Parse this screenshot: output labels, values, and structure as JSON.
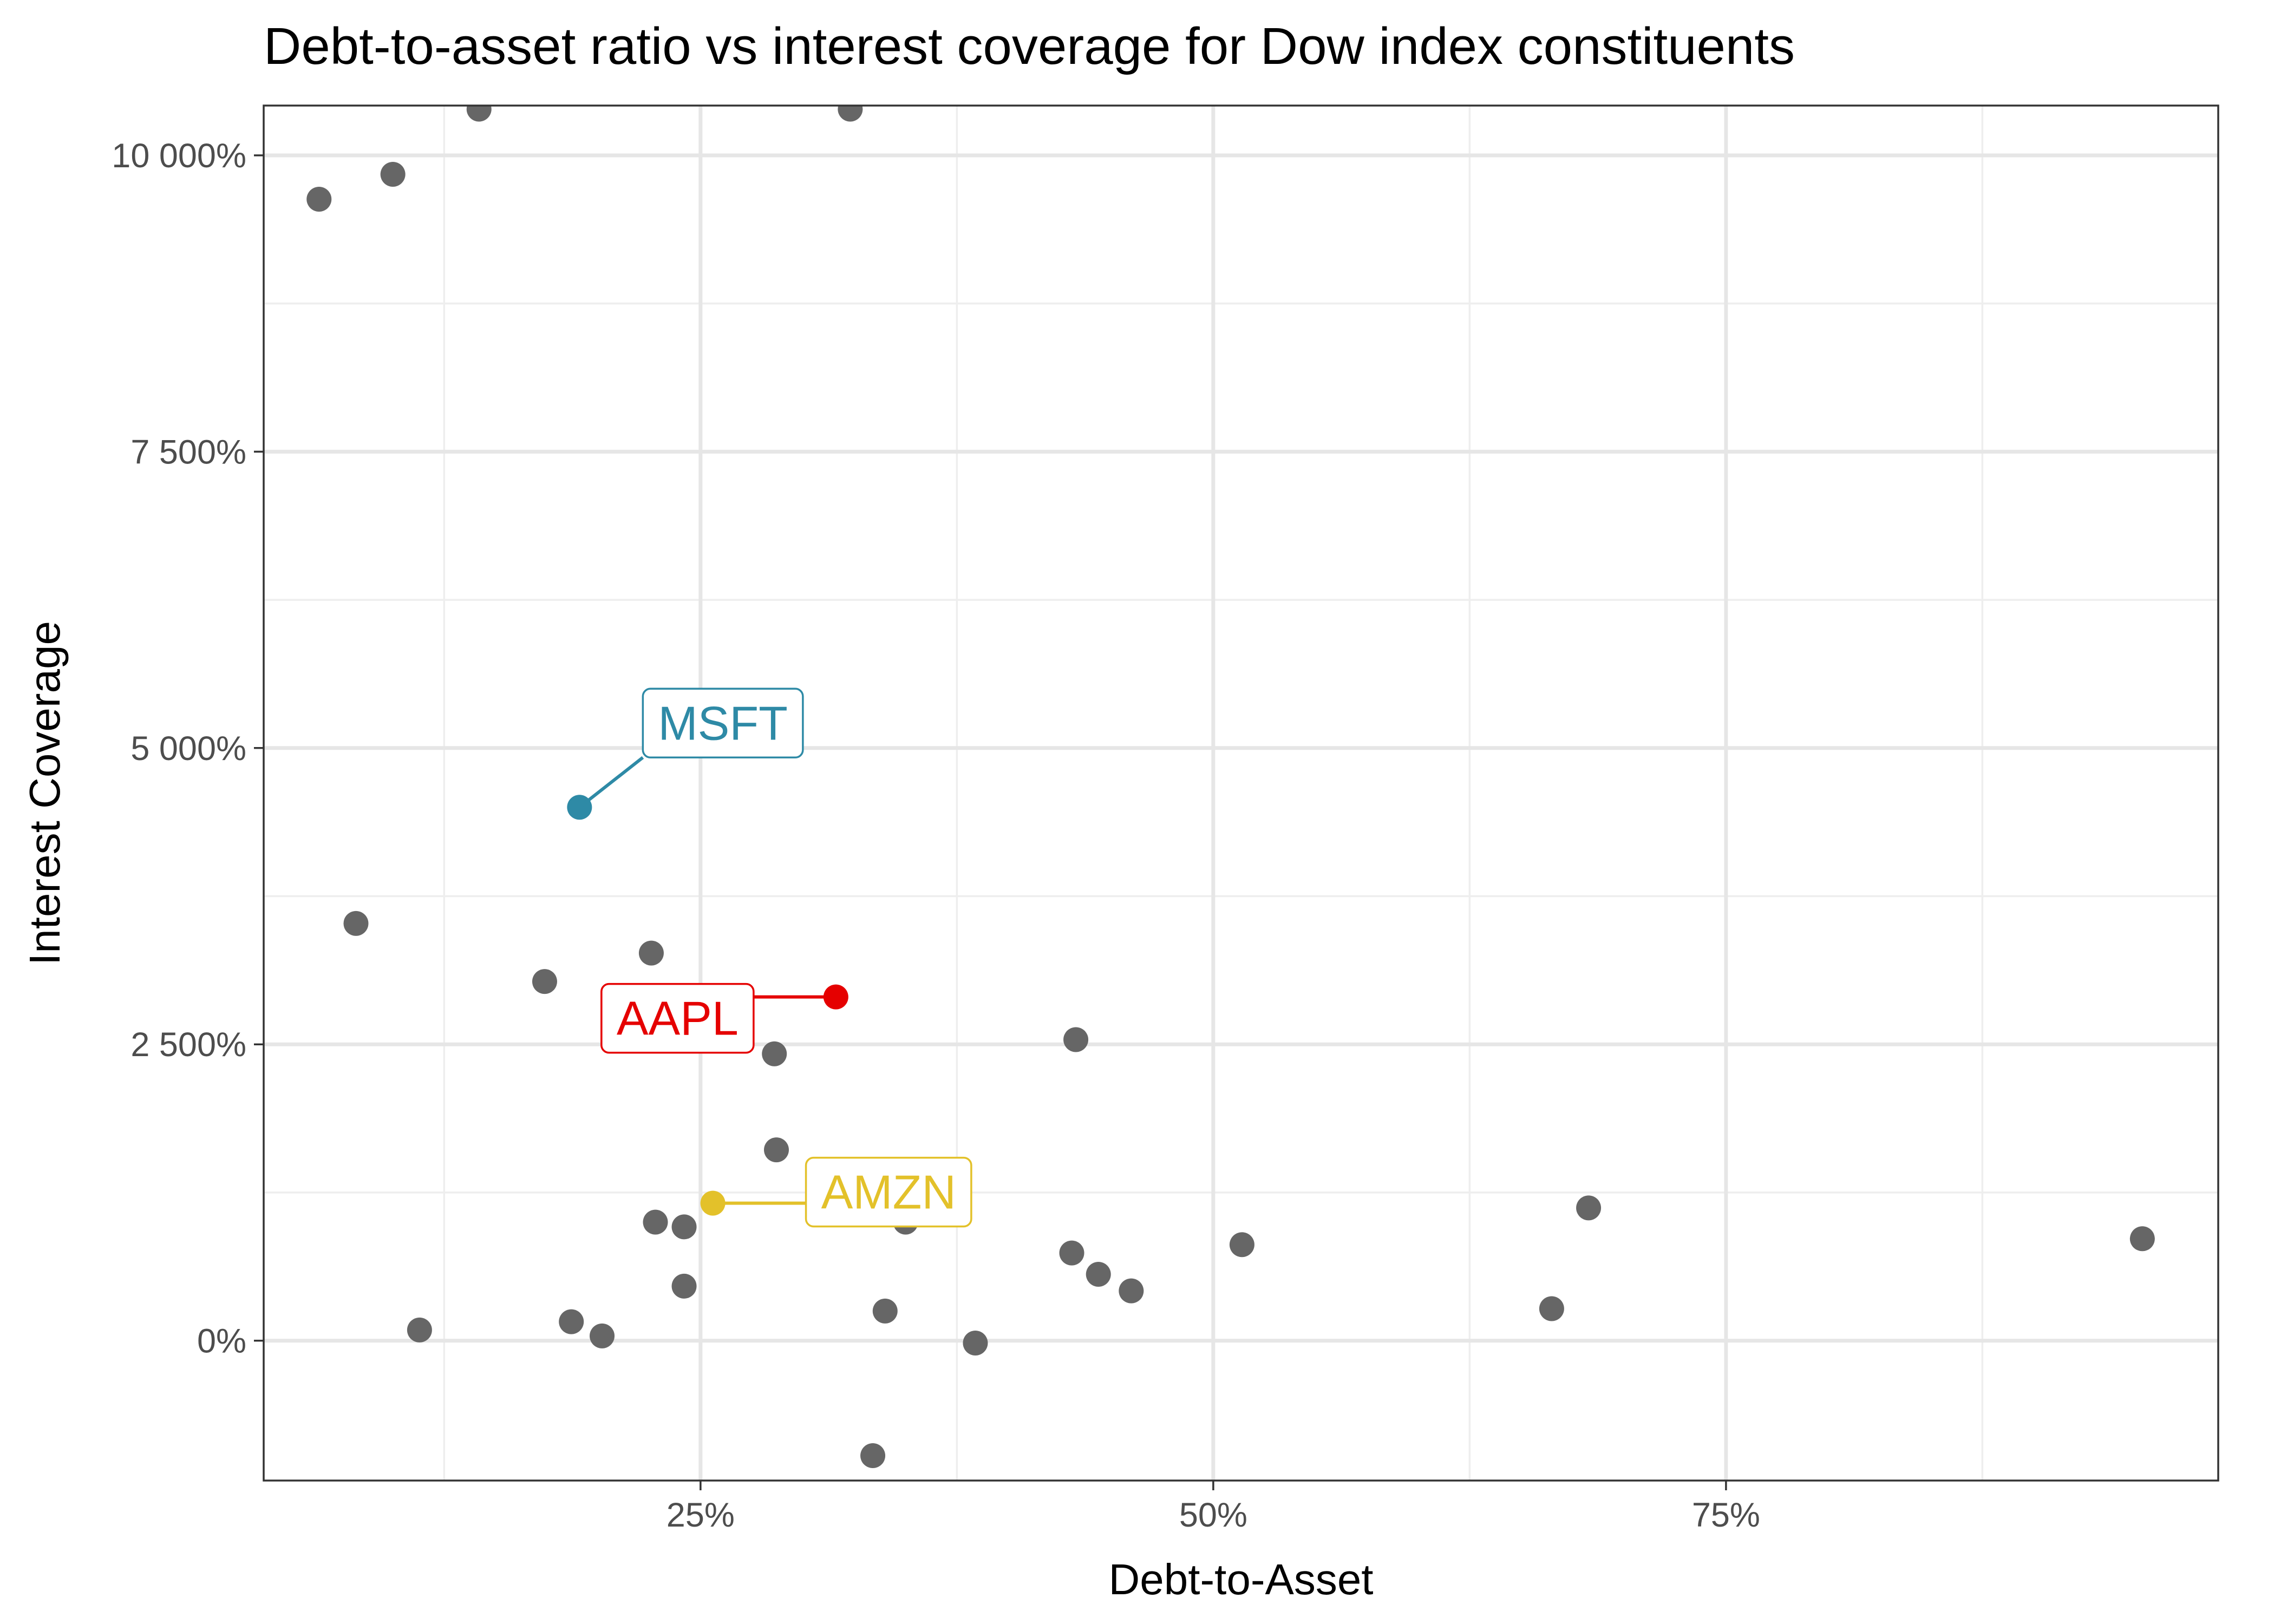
{
  "chart_data": {
    "type": "scatter",
    "title": "Debt-to-asset ratio vs interest coverage for Dow index constituents",
    "xlabel": "Debt-to-Asset",
    "ylabel": "Interest Coverage",
    "x_unit": "%",
    "y_unit": "%",
    "xlim": [
      3.7,
      99.0
    ],
    "ylim": [
      -1180,
      10420
    ],
    "x_ticks": [
      25,
      50,
      75
    ],
    "x_tick_labels": [
      "25%",
      "50%",
      "75%"
    ],
    "y_ticks": [
      0,
      2500,
      5000,
      7500,
      10000
    ],
    "y_tick_labels": [
      "0%",
      "2 500%",
      "5 000%",
      "7 500%",
      "10 000%"
    ],
    "grid": true,
    "legend": "none",
    "colors": {
      "default_point": "#666666",
      "MSFT": "#2e8aa6",
      "AAPL": "#e50000",
      "AMZN": "#e3c12a"
    },
    "points": [
      {
        "x": 14.2,
        "y": 10390
      },
      {
        "x": 32.3,
        "y": 10390
      },
      {
        "x": 10.0,
        "y": 9840
      },
      {
        "x": 6.4,
        "y": 9630
      },
      {
        "x": 8.2,
        "y": 3520
      },
      {
        "x": 22.6,
        "y": 3270
      },
      {
        "x": 17.4,
        "y": 3030
      },
      {
        "x": 28.6,
        "y": 2420
      },
      {
        "x": 43.3,
        "y": 2540
      },
      {
        "x": 28.7,
        "y": 1610
      },
      {
        "x": 22.8,
        "y": 1000
      },
      {
        "x": 24.2,
        "y": 960
      },
      {
        "x": 35.0,
        "y": 1000
      },
      {
        "x": 68.3,
        "y": 1120
      },
      {
        "x": 51.4,
        "y": 810
      },
      {
        "x": 43.1,
        "y": 740
      },
      {
        "x": 44.4,
        "y": 560
      },
      {
        "x": 46.0,
        "y": 420
      },
      {
        "x": 24.2,
        "y": 460
      },
      {
        "x": 95.3,
        "y": 860
      },
      {
        "x": 66.5,
        "y": 270
      },
      {
        "x": 34.0,
        "y": 250
      },
      {
        "x": 18.7,
        "y": 160
      },
      {
        "x": 11.3,
        "y": 90
      },
      {
        "x": 20.2,
        "y": 40
      },
      {
        "x": 38.4,
        "y": -20
      },
      {
        "x": 33.4,
        "y": -970
      }
    ],
    "highlighted": [
      {
        "name": "MSFT",
        "x": 19.1,
        "y": 4500,
        "label_position": "upper-right"
      },
      {
        "name": "AAPL",
        "x": 31.6,
        "y": 2900,
        "label_position": "lower-left"
      },
      {
        "name": "AMZN",
        "x": 25.6,
        "y": 1160,
        "label_position": "right"
      }
    ]
  }
}
